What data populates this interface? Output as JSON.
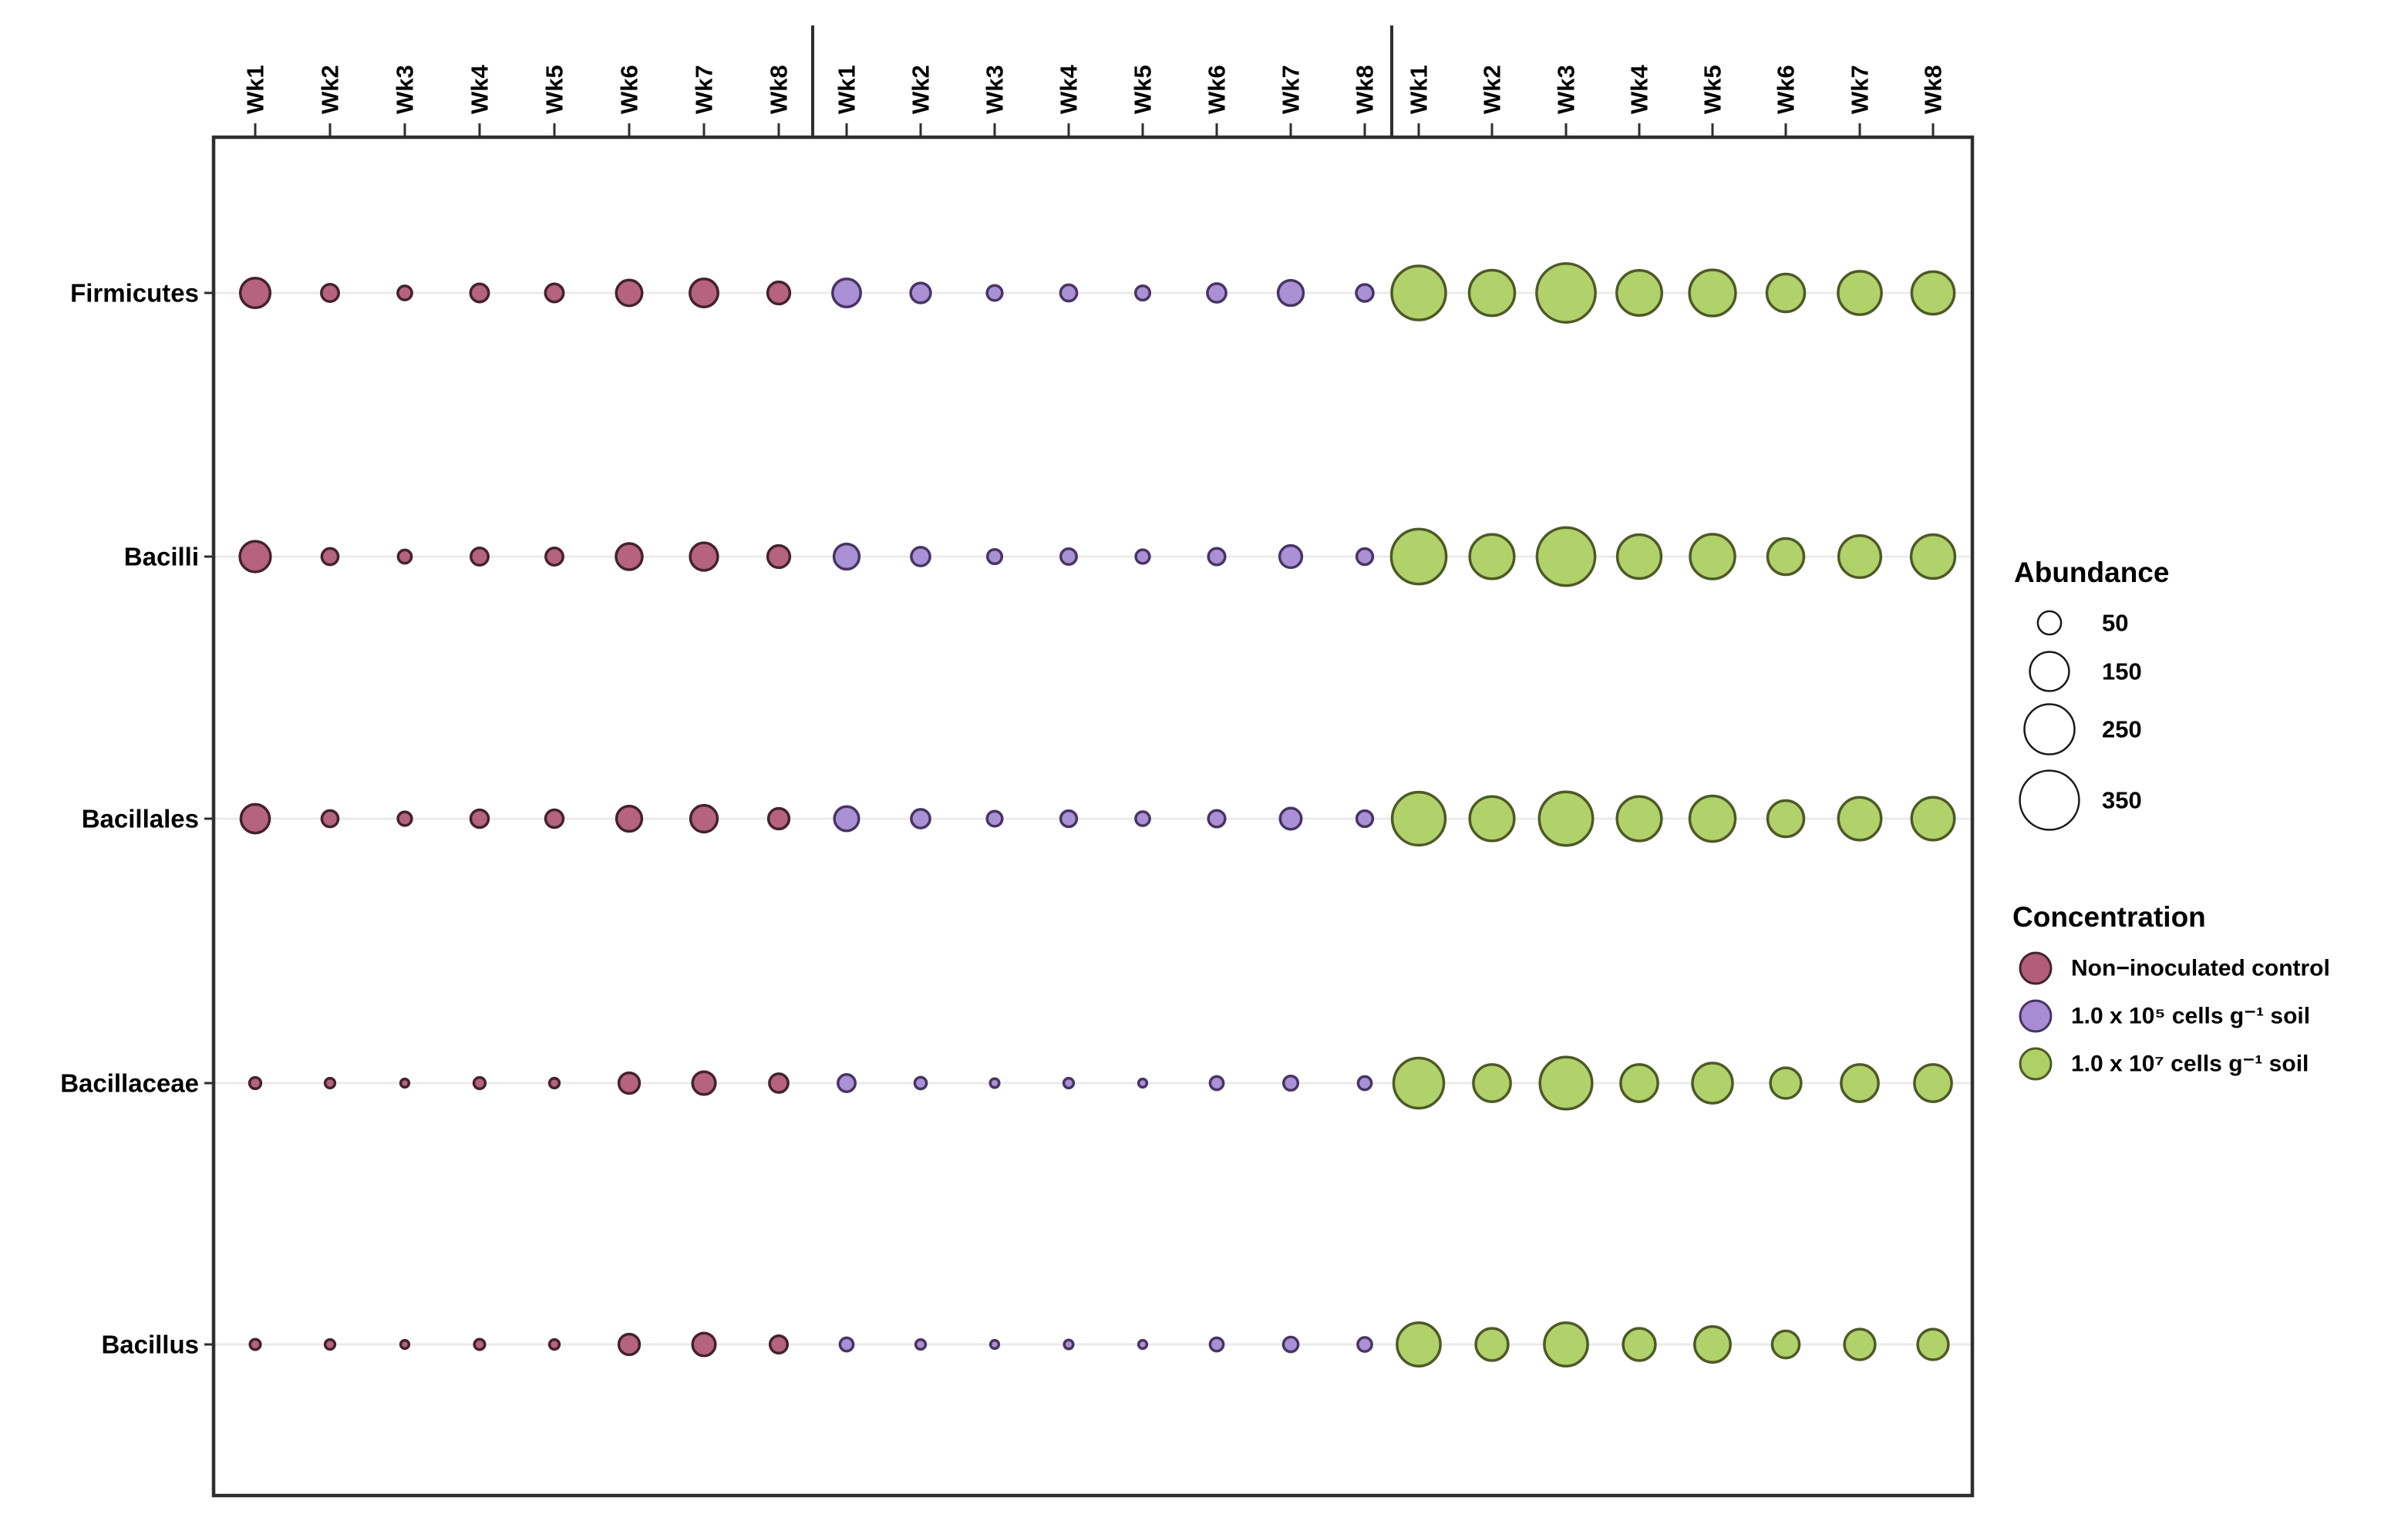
{
  "figure": {
    "background": "#ffffff",
    "frame_color": "#2e2e2e",
    "gridline_color": "#ebebeb",
    "text_color": "#000000"
  },
  "chart_data": {
    "type": "bubble",
    "title": "",
    "x_axis": {
      "group_labels_repeated": [
        "Wk1",
        "Wk2",
        "Wk3",
        "Wk4",
        "Wk5",
        "Wk6",
        "Wk7",
        "Wk8"
      ],
      "n_groups": 3,
      "label_rotation_deg": 90
    },
    "y_axis": {
      "categories": [
        "Firmicutes",
        "Bacilli",
        "Bacillales",
        "Bacillaceae",
        "Bacillus"
      ]
    },
    "size_legend": {
      "title": "Abundance",
      "breaks": [
        50,
        150,
        250,
        350
      ]
    },
    "color_legend": {
      "title": "Concentration",
      "entries": [
        {
          "label": "Non−inoculated control",
          "fill": "#b25d7a",
          "stroke": "#43222f"
        },
        {
          "label": "1.0 x 10⁵ cells g⁻¹ soil",
          "fill": "#a78cd4",
          "stroke": "#483463"
        },
        {
          "label": "1.0 x 10⁷ cells g⁻¹ soil",
          "fill": "#aed064",
          "stroke": "#4d5a27"
        }
      ]
    },
    "series": [
      {
        "name": "Non−inoculated control",
        "fill": "#b25d7a",
        "stroke": "#43222f",
        "values": {
          "Firmicutes": [
            85,
            25,
            15,
            28,
            28,
            62,
            75,
            45
          ],
          "Bacilli": [
            90,
            22,
            13,
            25,
            25,
            65,
            72,
            45
          ],
          "Bacillales": [
            78,
            22,
            14,
            27,
            27,
            60,
            68,
            38
          ],
          "Bacillaceae": [
            8,
            5,
            2,
            8,
            5,
            38,
            48,
            30
          ],
          "Bacillus": [
            6,
            5,
            2,
            6,
            5,
            38,
            48,
            26
          ]
        }
      },
      {
        "name": "1.0 x 10⁵ cells g⁻¹ soil",
        "fill": "#a78cd4",
        "stroke": "#483463",
        "values": {
          "Firmicutes": [
            75,
            35,
            18,
            22,
            16,
            30,
            60,
            24
          ],
          "Bacilli": [
            60,
            30,
            16,
            20,
            14,
            23,
            45,
            21
          ],
          "Bacillales": [
            55,
            30,
            18,
            21,
            15,
            23,
            40,
            21
          ],
          "Bacillaceae": [
            25,
            9,
            3,
            5,
            2,
            13,
            16,
            13
          ],
          "Bacillus": [
            13,
            5,
            2,
            3,
            2,
            13,
            17,
            15
          ]
        }
      },
      {
        "name": "1.0 x 10⁷ cells g⁻¹ soil",
        "fill": "#aed064",
        "stroke": "#4d5a27",
        "values": {
          "Firmicutes": [
            290,
            205,
            345,
            200,
            210,
            140,
            185,
            178
          ],
          "Bacilli": [
            300,
            195,
            335,
            190,
            198,
            128,
            175,
            190
          ],
          "Bacillales": [
            280,
            195,
            285,
            195,
            205,
            128,
            180,
            180
          ],
          "Bacillaceae": [
            250,
            135,
            270,
            135,
            158,
            90,
            135,
            135
          ],
          "Bacillus": [
            185,
            100,
            185,
            100,
            125,
            70,
            90,
            90
          ]
        }
      }
    ]
  }
}
